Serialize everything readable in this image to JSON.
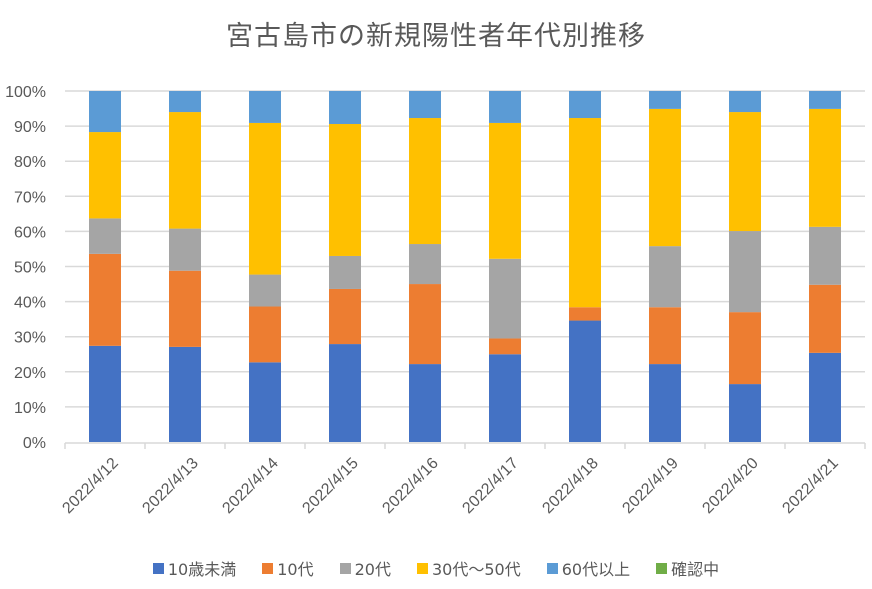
{
  "chart_data": {
    "type": "bar",
    "stacked": "percent",
    "title": "宮古島市の新規陽性者年代別推移",
    "xlabel": "",
    "ylabel": "",
    "ylim": [
      0,
      100
    ],
    "yticks": [
      "0%",
      "10%",
      "20%",
      "30%",
      "40%",
      "50%",
      "60%",
      "70%",
      "80%",
      "90%",
      "100%"
    ],
    "grid": true,
    "legend_position": "bottom",
    "categories": [
      "2022/4/12",
      "2022/4/13",
      "2022/4/14",
      "2022/4/15",
      "2022/4/16",
      "2022/4/17",
      "2022/4/18",
      "2022/4/19",
      "2022/4/20",
      "2022/4/21"
    ],
    "series": [
      {
        "name": "10歳未満",
        "color": "#4472C4",
        "values": [
          27.4,
          27.1,
          22.7,
          27.9,
          22.2,
          25.0,
          34.6,
          22.2,
          16.5,
          25.4
        ]
      },
      {
        "name": "10代",
        "color": "#ED7D31",
        "values": [
          26.2,
          21.7,
          15.9,
          15.7,
          22.8,
          4.5,
          3.8,
          16.2,
          20.5,
          19.4
        ]
      },
      {
        "name": "20代",
        "color": "#A5A5A5",
        "values": [
          10.1,
          12.0,
          9.1,
          9.4,
          11.4,
          22.7,
          0.0,
          17.4,
          23.1,
          16.5
        ]
      },
      {
        "name": "30代～50代",
        "color": "#FFC000",
        "values": [
          24.6,
          33.2,
          43.2,
          37.6,
          35.9,
          38.7,
          53.9,
          39.1,
          33.9,
          33.6
        ]
      },
      {
        "name": "60代以上",
        "color": "#5B9BD5",
        "values": [
          11.7,
          6.0,
          9.1,
          9.4,
          7.7,
          9.1,
          7.7,
          5.1,
          6.0,
          5.1
        ]
      },
      {
        "name": "確認中",
        "color": "#70AD47",
        "values": [
          0,
          0,
          0,
          0,
          0,
          0,
          0,
          0,
          0,
          0
        ]
      }
    ]
  }
}
